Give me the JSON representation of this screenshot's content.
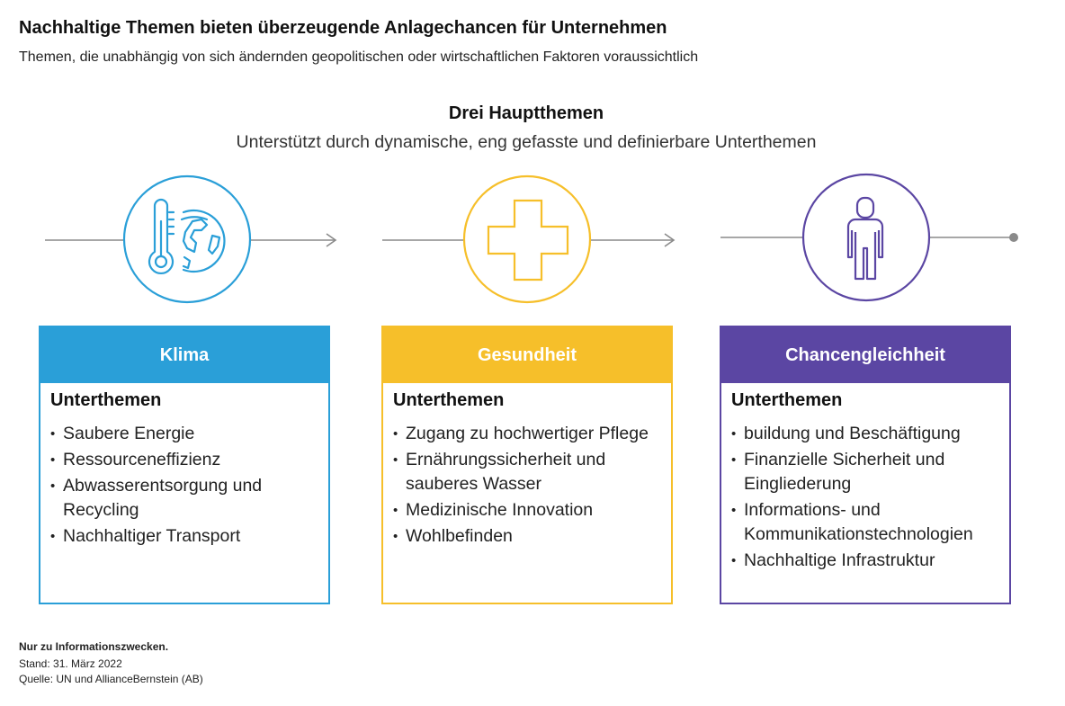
{
  "header": {
    "title": "Nachhaltige Themen bieten überzeugende Anlagechancen für Unternehmen",
    "subtitle": "Themen, die unabhängig von sich ändernden geopolitischen oder wirtschaftlichen Faktoren voraussichtlich"
  },
  "diagram": {
    "title": "Drei Hauptthemen",
    "subtitle": "Unterstützt durch dynamische, eng gefasste und definierbare Unterthemen"
  },
  "colors": {
    "klima": "#2a9fd8",
    "gesundheit": "#f6bf2a",
    "chancengleichheit": "#5b46a3",
    "connector": "#8a8a8a"
  },
  "themes": [
    {
      "icon": "thermometer-globe-icon",
      "label": "Klima",
      "sub_label": "Unterthemen",
      "items": [
        "Saubere Energie",
        "Ressourceneffizienz",
        "Abwasserentsorgung und Recycling",
        "Nachhaltiger Transport"
      ]
    },
    {
      "icon": "medical-cross-icon",
      "label": "Gesundheit",
      "sub_label": "Unterthemen",
      "items": [
        "Zugang zu hochwertiger Pflege",
        "Ernährungssicherheit und sauberes Wasser",
        "Medizinische Innovation",
        "Wohlbefinden"
      ]
    },
    {
      "icon": "person-icon",
      "label": "Chancengleichheit",
      "sub_label": "Unterthemen",
      "items": [
        "buildung und Beschäftigung",
        "Finanzielle Sicherheit und Eingliederung",
        "Informations- und Kommunikationstechnologien",
        "Nachhaltige Infrastruktur"
      ]
    }
  ],
  "footer": {
    "note": "Nur zu Informationszwecken.",
    "date": "Stand: 31. März 2022",
    "source": "Quelle: UN und AllianceBernstein (AB)"
  }
}
